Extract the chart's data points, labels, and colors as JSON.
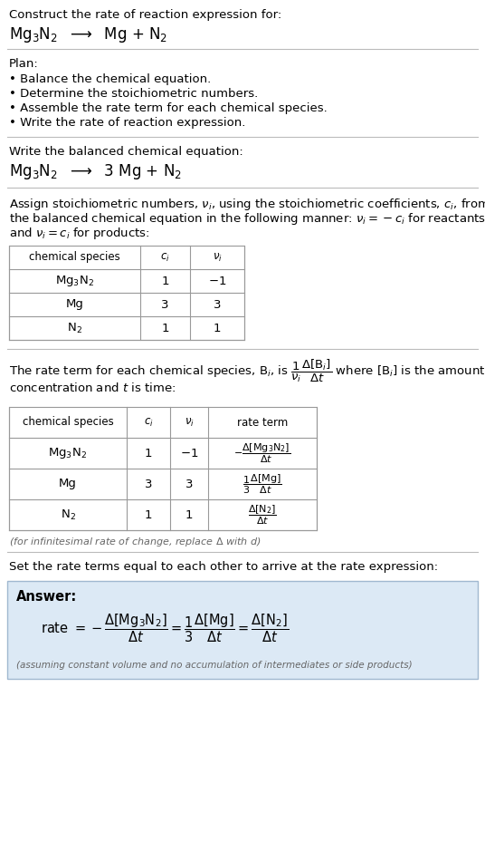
{
  "bg_color": "#ffffff",
  "text_color": "#000000",
  "gray_text": "#666666",
  "table_border": "#999999",
  "answer_bg": "#dce9f5",
  "answer_border": "#a0b8d0",
  "section1_title": "Construct the rate of reaction expression for:",
  "section1_eq": "Mg$_3$N$_2$  $\\longrightarrow$  Mg + N$_2$",
  "plan_title": "Plan:",
  "plan_items": [
    "• Balance the chemical equation.",
    "• Determine the stoichiometric numbers.",
    "• Assemble the rate term for each chemical species.",
    "• Write the rate of reaction expression."
  ],
  "balanced_title": "Write the balanced chemical equation:",
  "balanced_eq": "Mg$_3$N$_2$  $\\longrightarrow$  3 Mg + N$_2$",
  "stoich_intro_lines": [
    "Assign stoichiometric numbers, $\\nu_i$, using the stoichiometric coefficients, $c_i$, from",
    "the balanced chemical equation in the following manner: $\\nu_i = -c_i$ for reactants",
    "and $\\nu_i = c_i$ for products:"
  ],
  "table1_headers": [
    "chemical species",
    "$c_i$",
    "$\\nu_i$"
  ],
  "table1_rows": [
    [
      "Mg$_3$N$_2$",
      "1",
      "$-1$"
    ],
    [
      "Mg",
      "3",
      "3"
    ],
    [
      "N$_2$",
      "1",
      "1"
    ]
  ],
  "rate_intro_lines": [
    "The rate term for each chemical species, B$_i$, is $\\dfrac{1}{\\nu_i}\\dfrac{\\Delta[\\mathrm{B}_i]}{\\Delta t}$ where [B$_i$] is the amount",
    "concentration and $t$ is time:"
  ],
  "table2_headers": [
    "chemical species",
    "$c_i$",
    "$\\nu_i$",
    "rate term"
  ],
  "table2_rows": [
    [
      "Mg$_3$N$_2$",
      "1",
      "$-1$",
      "$-\\dfrac{\\Delta[\\mathrm{Mg_3N_2}]}{\\Delta t}$"
    ],
    [
      "Mg",
      "3",
      "3",
      "$\\dfrac{1}{3}\\dfrac{\\Delta[\\mathrm{Mg}]}{\\Delta t}$"
    ],
    [
      "N$_2$",
      "1",
      "1",
      "$\\dfrac{\\Delta[\\mathrm{N_2}]}{\\Delta t}$"
    ]
  ],
  "infinitesimal_note": "(for infinitesimal rate of change, replace $\\Delta$ with $d$)",
  "set_equal_text": "Set the rate terms equal to each other to arrive at the rate expression:",
  "answer_label": "Answer:",
  "answer_eq": "rate $= -\\dfrac{\\Delta[\\mathrm{Mg_3N_2}]}{\\Delta t} = \\dfrac{1}{3}\\dfrac{\\Delta[\\mathrm{Mg}]}{\\Delta t} = \\dfrac{\\Delta[\\mathrm{N_2}]}{\\Delta t}$",
  "answer_note": "(assuming constant volume and no accumulation of intermediates or side products)"
}
